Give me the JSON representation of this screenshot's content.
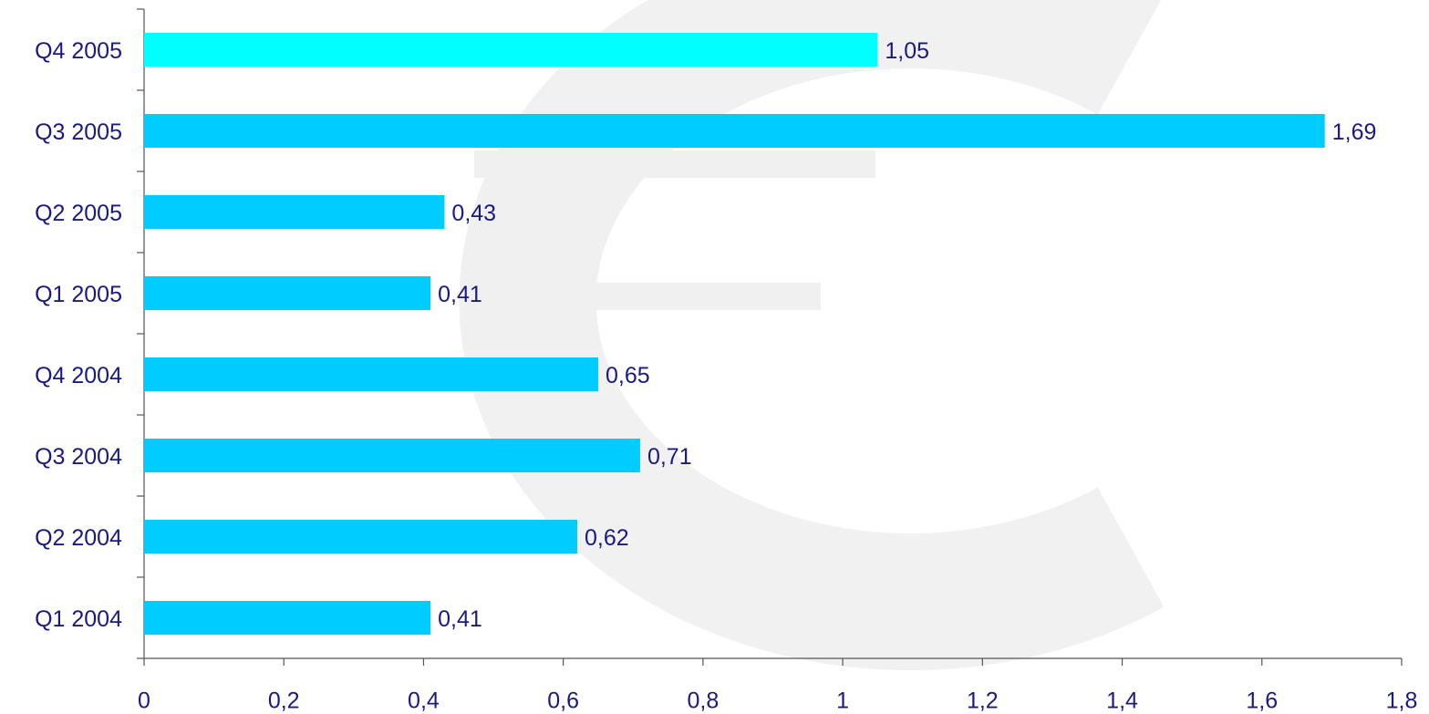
{
  "chart_data": {
    "type": "bar",
    "orientation": "horizontal",
    "categories": [
      "Q4 2005",
      "Q3 2005",
      "Q2 2005",
      "Q1 2005",
      "Q4 2004",
      "Q3 2004",
      "Q2 2004",
      "Q1 2004"
    ],
    "values": [
      1.05,
      1.69,
      0.43,
      0.41,
      0.65,
      0.71,
      0.62,
      0.41
    ],
    "value_labels": [
      "1,05",
      "1,69",
      "0,43",
      "0,41",
      "0,65",
      "0,71",
      "0,62",
      "0,41"
    ],
    "colors": [
      "#00ffff",
      "#00ccff",
      "#00ccff",
      "#00ccff",
      "#00ccff",
      "#00ccff",
      "#00ccff",
      "#00ccff"
    ],
    "xlim": [
      0,
      1.8
    ],
    "xticks": [
      0,
      {
        "value": 0.2,
        "label": "0,2"
      },
      {
        "value": 0.4,
        "label": "0,4"
      },
      {
        "value": 0.6,
        "label": "0,6"
      },
      {
        "value": 0.8,
        "label": "0,8"
      },
      1,
      {
        "value": 1.2,
        "label": "1,2"
      },
      {
        "value": 1.4,
        "label": "1,4"
      },
      {
        "value": 1.6,
        "label": "1,6"
      },
      {
        "value": 1.8,
        "label": "1,8"
      }
    ],
    "grid": false
  }
}
